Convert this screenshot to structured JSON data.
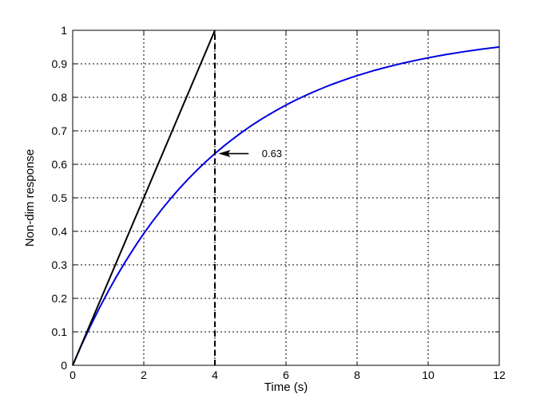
{
  "figure": {
    "background": "#FFFFFF",
    "axes_color": "#000000",
    "grid_color": "#000000"
  },
  "chart_data": {
    "type": "line",
    "title": "",
    "xlabel": "Time (s)",
    "ylabel": "Non-dim response",
    "xlim": [
      0,
      12
    ],
    "ylim": [
      0,
      1
    ],
    "grid": true,
    "legend": "none",
    "x_ticks": [
      0,
      2,
      4,
      6,
      8,
      10,
      12
    ],
    "x_tick_labels": [
      "0",
      "2",
      "4",
      "6",
      "8",
      "10",
      "12"
    ],
    "y_ticks": [
      0,
      0.1,
      0.2,
      0.3,
      0.4,
      0.5,
      0.6,
      0.7,
      0.8,
      0.9,
      1
    ],
    "y_tick_labels": [
      "0",
      "0.1",
      "0.2",
      "0.3",
      "0.4",
      "0.5",
      "0.6",
      "0.7",
      "0.8",
      "0.9",
      "1"
    ],
    "series": [
      {
        "name": "first-order-response-curve",
        "color": "#0000E0",
        "line_style": "solid",
        "line_width": 2,
        "x": [
          0,
          0.25,
          0.5,
          0.75,
          1,
          1.25,
          1.5,
          1.75,
          2,
          2.25,
          2.5,
          2.75,
          3,
          3.25,
          3.5,
          3.75,
          4,
          4.25,
          4.5,
          4.75,
          5,
          5.25,
          5.5,
          5.75,
          6,
          6.25,
          6.5,
          6.75,
          7,
          7.25,
          7.5,
          7.75,
          8,
          8.25,
          8.5,
          8.75,
          9,
          9.25,
          9.5,
          9.75,
          10,
          10.25,
          10.5,
          10.75,
          11,
          11.25,
          11.5,
          11.75,
          12
        ],
        "y": [
          0,
          0.0606,
          0.1175,
          0.171,
          0.2212,
          0.2684,
          0.3127,
          0.3543,
          0.3935,
          0.4302,
          0.4647,
          0.4971,
          0.5276,
          0.5563,
          0.5831,
          0.6084,
          0.6321,
          0.6544,
          0.6753,
          0.695,
          0.7135,
          0.7309,
          0.7471,
          0.7624,
          0.7769,
          0.7904,
          0.8031,
          0.8151,
          0.8262,
          0.8368,
          0.8466,
          0.8559,
          0.8647,
          0.8729,
          0.8806,
          0.8878,
          0.8946,
          0.901,
          0.907,
          0.9126,
          0.9179,
          0.9229,
          0.9276,
          0.932,
          0.9361,
          0.94,
          0.9437,
          0.947,
          0.9502
        ]
      },
      {
        "name": "initial-slope-tangent-line",
        "color": "#000000",
        "line_style": "solid",
        "line_width": 2,
        "x": [
          0,
          4
        ],
        "y": [
          0,
          1
        ]
      },
      {
        "name": "time-constant-vertical-marker",
        "color": "#000000",
        "line_style": "dashed",
        "line_width": 2,
        "x": [
          4,
          4
        ],
        "y": [
          0,
          1
        ]
      }
    ],
    "annotations": [
      {
        "label": "0.63",
        "arrow_tip": [
          4.1,
          0.632
        ],
        "arrow_tail": [
          4.95,
          0.632
        ],
        "label_pos": [
          5.32,
          0.621
        ]
      }
    ]
  }
}
